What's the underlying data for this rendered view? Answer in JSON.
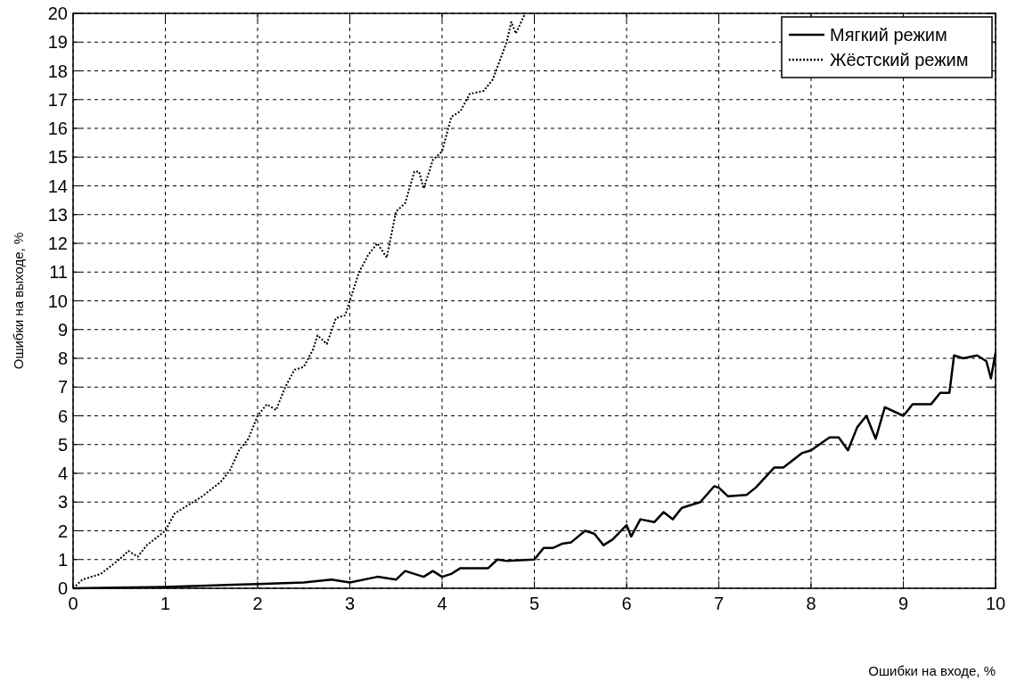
{
  "chart_data": {
    "type": "line",
    "xlabel": "Ошибки на входе, %",
    "ylabel": "Ошибки на выходе, %",
    "xlim": [
      0,
      10
    ],
    "xticks": [
      0,
      1,
      2,
      3,
      4,
      5,
      6,
      7,
      8,
      9,
      10
    ],
    "ylim": [
      0,
      20
    ],
    "yticks": [
      0,
      1,
      2,
      3,
      4,
      5,
      6,
      7,
      8,
      9,
      10,
      11,
      12,
      13,
      14,
      15,
      16,
      17,
      18,
      19,
      20
    ],
    "grid": true,
    "legend": "top right",
    "series": [
      {
        "name": "Мягкий режим",
        "color": "#000000",
        "line_style": "solid",
        "x": [
          0,
          1,
          2,
          2.5,
          2.8,
          3,
          3.3,
          3.5,
          3.6,
          3.8,
          3.9,
          4,
          4.1,
          4.2,
          4.5,
          4.6,
          4.7,
          5,
          5.1,
          5.2,
          5.3,
          5.4,
          5.55,
          5.65,
          5.75,
          5.85,
          6,
          6.05,
          6.15,
          6.3,
          6.4,
          6.5,
          6.6,
          6.8,
          6.95,
          7,
          7.1,
          7.3,
          7.4,
          7.6,
          7.7,
          7.9,
          8,
          8.2,
          8.3,
          8.4,
          8.5,
          8.6,
          8.7,
          8.8,
          9,
          9.1,
          9.3,
          9.4,
          9.5,
          9.55,
          9.65,
          9.8,
          9.9,
          9.95,
          10
        ],
        "values": [
          0,
          0.05,
          0.15,
          0.2,
          0.3,
          0.2,
          0.4,
          0.3,
          0.6,
          0.4,
          0.6,
          0.4,
          0.5,
          0.7,
          0.7,
          1,
          0.95,
          1,
          1.4,
          1.4,
          1.55,
          1.6,
          2,
          1.9,
          1.5,
          1.7,
          2.2,
          1.8,
          2.4,
          2.3,
          2.65,
          2.4,
          2.8,
          3,
          3.55,
          3.5,
          3.2,
          3.25,
          3.5,
          4.2,
          4.2,
          4.7,
          4.8,
          5.25,
          5.25,
          4.8,
          5.6,
          6,
          5.2,
          6.3,
          6,
          6.4,
          6.4,
          6.8,
          6.8,
          8.1,
          8,
          8.1,
          7.9,
          7.3,
          8.2
        ]
      },
      {
        "name": "Жёстский режим",
        "color": "#000000",
        "line_style": "dotted",
        "x": [
          0,
          0.1,
          0.3,
          0.5,
          0.6,
          0.7,
          0.8,
          1,
          1.1,
          1.2,
          1.4,
          1.6,
          1.7,
          1.8,
          1.9,
          2,
          2.1,
          2.2,
          2.3,
          2.4,
          2.5,
          2.6,
          2.65,
          2.75,
          2.85,
          2.95,
          3,
          3.1,
          3.2,
          3.3,
          3.4,
          3.5,
          3.6,
          3.7,
          3.75,
          3.8,
          3.9,
          4,
          4.1,
          4.2,
          4.3,
          4.45,
          4.55,
          4.7,
          4.75,
          4.8,
          4.9
        ],
        "values": [
          0,
          0.3,
          0.5,
          1,
          1.3,
          1.1,
          1.5,
          2,
          2.6,
          2.8,
          3.2,
          3.7,
          4.1,
          4.8,
          5.2,
          6,
          6.4,
          6.2,
          7,
          7.6,
          7.7,
          8.3,
          8.8,
          8.5,
          9.4,
          9.5,
          10,
          11,
          11.6,
          12,
          11.5,
          13.1,
          13.4,
          14.5,
          14.5,
          13.9,
          14.9,
          15.2,
          16.4,
          16.6,
          17.2,
          17.3,
          17.7,
          19,
          19.7,
          19.3,
          20
        ]
      }
    ]
  }
}
